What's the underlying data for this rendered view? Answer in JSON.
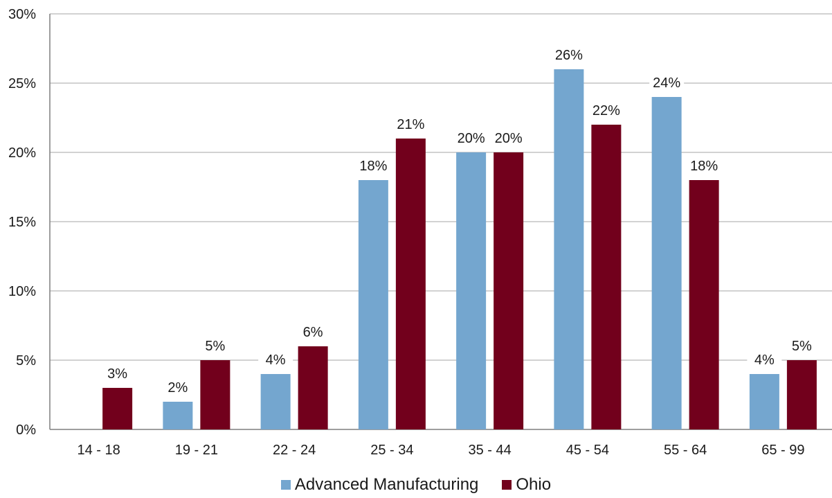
{
  "chart_data": {
    "type": "bar",
    "categories": [
      "14 - 18",
      "19 - 21",
      "22 - 24",
      "25 - 34",
      "35 - 44",
      "45 - 54",
      "55 - 64",
      "65 - 99"
    ],
    "series": [
      {
        "name": "Advanced Manufacturing",
        "color": "#74a6cf",
        "values": [
          0,
          2,
          4,
          18,
          20,
          26,
          24,
          4
        ],
        "labels": [
          "",
          "2%",
          "4%",
          "18%",
          "20%",
          "26%",
          "24%",
          "4%"
        ]
      },
      {
        "name": "Ohio",
        "color": "#72001c",
        "values": [
          3,
          5,
          6,
          21,
          20,
          22,
          18,
          5
        ],
        "labels": [
          "3%",
          "5%",
          "6%",
          "21%",
          "20%",
          "22%",
          "18%",
          "5%"
        ]
      }
    ],
    "yticks": [
      "0%",
      "5%",
      "10%",
      "15%",
      "20%",
      "25%",
      "30%"
    ],
    "ylim": [
      0,
      30
    ],
    "grid": true,
    "legend_position": "bottom"
  }
}
